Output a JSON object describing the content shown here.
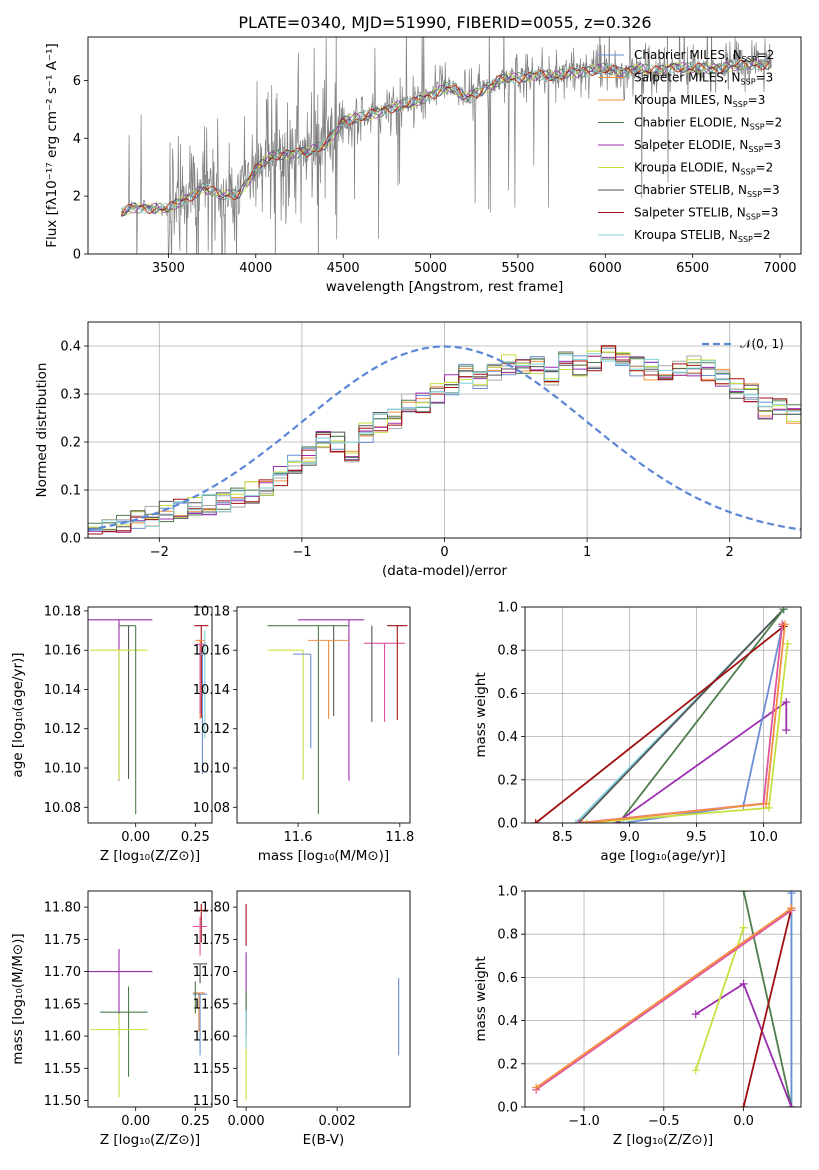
{
  "title": "PLATE=0340, MJD=51990, FIBERID=0055, z=0.326",
  "colors": {
    "model_spectra": [
      "#6a8fd5",
      "#f29040",
      "#a8a8a8",
      "#4e7d4e",
      "#9b2fae",
      "#c8e040",
      "#555555",
      "#a01010",
      "#7fd0d8"
    ],
    "data_spectrum": "#808080",
    "normal_curve": "#5c86d6"
  },
  "chart_data": [
    {
      "id": "spectrum",
      "type": "line",
      "xlabel": "wavelength [Angstrom, rest frame]",
      "ylabel": "Flux [fλ10⁻¹⁷ erg cm⁻² s⁻¹ A⁻¹]",
      "xlim": [
        3040,
        7120
      ],
      "ylim": [
        0,
        7.5
      ],
      "xticks": [
        3500,
        4000,
        4500,
        5000,
        5500,
        6000,
        6500,
        7000
      ],
      "yticks": [
        0,
        2,
        4,
        6
      ],
      "legend_position": "top-right",
      "legend": [
        {
          "label": "Chabrier MILES, N",
          "sub": "SSP",
          "tail": "=2",
          "color": "#6a8fd5"
        },
        {
          "label": "Salpeter MILES, N",
          "sub": "SSP",
          "tail": "=3",
          "color": "#f29040"
        },
        {
          "label": "Kroupa MILES, N",
          "sub": "SSP",
          "tail": "=3",
          "color": "#f29040"
        },
        {
          "label": "Chabrier ELODIE, N",
          "sub": "SSP",
          "tail": "=2",
          "color": "#4e7d4e"
        },
        {
          "label": "Salpeter ELODIE, N",
          "sub": "SSP",
          "tail": "=3",
          "color": "#9b2fae"
        },
        {
          "label": "Kroupa ELODIE, N",
          "sub": "SSP",
          "tail": "=2",
          "color": "#c8e040"
        },
        {
          "label": "Chabrier STELIB, N",
          "sub": "SSP",
          "tail": "=3",
          "color": "#555555"
        },
        {
          "label": "Salpeter STELIB, N",
          "sub": "SSP",
          "tail": "=3",
          "color": "#a01010"
        },
        {
          "label": "Kroupa STELIB, N",
          "sub": "SSP",
          "tail": "=2",
          "color": "#7fd0d8"
        }
      ],
      "continuum": [
        [
          3230,
          1.4
        ],
        [
          3300,
          1.6
        ],
        [
          3400,
          1.6
        ],
        [
          3500,
          1.55
        ],
        [
          3600,
          1.9
        ],
        [
          3700,
          2.3
        ],
        [
          3800,
          2.0
        ],
        [
          3900,
          2.1
        ],
        [
          4000,
          2.9
        ],
        [
          4100,
          3.4
        ],
        [
          4200,
          3.5
        ],
        [
          4300,
          3.5
        ],
        [
          4400,
          3.8
        ],
        [
          4500,
          4.6
        ],
        [
          4600,
          4.7
        ],
        [
          4700,
          4.9
        ],
        [
          4800,
          5.1
        ],
        [
          4900,
          5.2
        ],
        [
          5000,
          5.5
        ],
        [
          5100,
          5.8
        ],
        [
          5200,
          5.4
        ],
        [
          5300,
          5.7
        ],
        [
          5400,
          6.0
        ],
        [
          5500,
          6.1
        ],
        [
          5600,
          6.2
        ],
        [
          5700,
          6.1
        ],
        [
          5800,
          6.3
        ],
        [
          5900,
          6.3
        ],
        [
          6000,
          6.4
        ],
        [
          6100,
          6.3
        ],
        [
          6200,
          6.4
        ],
        [
          6300,
          6.3
        ],
        [
          6400,
          6.5
        ],
        [
          6500,
          6.4
        ],
        [
          6600,
          6.4
        ],
        [
          6700,
          6.5
        ],
        [
          6800,
          6.5
        ],
        [
          6950,
          6.6
        ]
      ]
    },
    {
      "id": "residuals",
      "type": "line",
      "xlabel": "(data-model)/error",
      "ylabel": "Normed distribution",
      "xlim": [
        -2.5,
        2.5
      ],
      "ylim": [
        0,
        0.45
      ],
      "xticks": [
        -2,
        -1,
        0,
        1,
        2
      ],
      "yticks": [
        0.0,
        0.1,
        0.2,
        0.3,
        0.4
      ],
      "grid": true,
      "legend_position": "top-right",
      "legend": [
        "𝒩(0, 1)"
      ],
      "bin_width": 0.1,
      "bins_start": -2.5,
      "hist_mean": [
        0.02,
        0.025,
        0.03,
        0.035,
        0.045,
        0.055,
        0.06,
        0.065,
        0.07,
        0.075,
        0.085,
        0.095,
        0.11,
        0.13,
        0.15,
        0.17,
        0.2,
        0.2,
        0.18,
        0.22,
        0.24,
        0.25,
        0.28,
        0.28,
        0.3,
        0.32,
        0.34,
        0.33,
        0.34,
        0.36,
        0.35,
        0.36,
        0.34,
        0.37,
        0.36,
        0.37,
        0.38,
        0.37,
        0.36,
        0.35,
        0.35,
        0.36,
        0.36,
        0.35,
        0.33,
        0.31,
        0.3,
        0.27,
        0.28,
        0.26,
        0.27,
        0.26,
        0.24,
        0.22,
        0.22,
        0.2,
        0.19,
        0.18,
        0.16,
        0.14,
        0.13,
        0.11,
        0.1,
        0.09,
        0.085,
        0.075,
        0.07,
        0.06,
        0.05,
        0.045
      ]
    },
    {
      "id": "age-vs-Z",
      "type": "scatter",
      "xlabel": "Z [log₁₀(Z/Z⊙)]",
      "ylabel": "age  [log₁₀(age/yr)]",
      "xlim": [
        -0.2,
        0.32
      ],
      "ylim": [
        10.072,
        10.182
      ],
      "xticks": [
        0.0,
        0.25
      ],
      "xticklabels": [
        "0.00",
        "0.25"
      ],
      "yticks": [
        10.08,
        10.1,
        10.12,
        10.14,
        10.16,
        10.18
      ],
      "points": [
        {
          "x": -0.07,
          "y": 10.1755,
          "xerr": [
            0.14,
            0.14
          ],
          "yerr": [
            0.082,
            0.0
          ],
          "color": "#9b2fae"
        },
        {
          "x": -0.03,
          "y": 10.1725,
          "xerr": [
            0.0,
            0.0
          ],
          "yerr": [
            0.078,
            0.0
          ],
          "color": "#555555"
        },
        {
          "x": -0.07,
          "y": 10.16,
          "xerr": [
            0.12,
            0.12
          ],
          "yerr": [
            0.066,
            0.0
          ],
          "color": "#c8e040"
        },
        {
          "x": 0.0,
          "y": 10.1725,
          "xerr": [
            0.07,
            0.0
          ],
          "yerr": [
            0.096,
            0.0
          ],
          "color": "#4e7d4e"
        },
        {
          "x": 0.275,
          "y": 10.1725,
          "xerr": [
            0.03,
            0.03
          ],
          "yerr": [
            0.047,
            0.0
          ],
          "color": "#a01010"
        },
        {
          "x": 0.27,
          "y": 10.165,
          "xerr": [
            0.02,
            0.02
          ],
          "yerr": [
            0.04,
            0.0
          ],
          "color": "#f29040"
        },
        {
          "x": 0.27,
          "y": 10.163,
          "xerr": [
            0.02,
            0.02
          ],
          "yerr": [
            0.035,
            0.0
          ],
          "color": "#e0559e"
        },
        {
          "x": 0.28,
          "y": 10.158,
          "xerr": [
            0.03,
            0.0
          ],
          "yerr": [
            0.061,
            0.0
          ],
          "color": "#6a8fd5"
        },
        {
          "x": 0.29,
          "y": 10.17,
          "xerr": [
            0.0,
            0.0
          ],
          "yerr": [
            0.055,
            0.0
          ],
          "color": "#7fd0d8"
        }
      ]
    },
    {
      "id": "age-vs-mass",
      "type": "scatter",
      "xlabel": "mass [log₁₀(M/M⊙)]",
      "ylabel": "",
      "xlim": [
        11.48,
        11.82
      ],
      "ylim": [
        10.072,
        10.182
      ],
      "xticks": [
        11.6,
        11.8
      ],
      "xticklabels": [
        "11.6",
        "11.8"
      ],
      "yticks": [
        10.08,
        10.1,
        10.12,
        10.14,
        10.16,
        10.18
      ],
      "points": [
        {
          "x": 11.7,
          "y": 10.1755,
          "xerr": [
            0.1,
            0.03
          ],
          "yerr": [
            0.082,
            0.0
          ],
          "color": "#9b2fae"
        },
        {
          "x": 11.64,
          "y": 10.1725,
          "xerr": [
            0.1,
            0.06
          ],
          "yerr": [
            0.096,
            0.0
          ],
          "color": "#4e7d4e"
        },
        {
          "x": 11.67,
          "y": 10.1725,
          "xerr": [
            0.0,
            0.0
          ],
          "yerr": [
            0.046,
            0.0
          ],
          "color": "#555555"
        },
        {
          "x": 11.61,
          "y": 10.16,
          "xerr": [
            0.07,
            0.0
          ],
          "yerr": [
            0.066,
            0.0
          ],
          "color": "#c8e040"
        },
        {
          "x": 11.66,
          "y": 10.165,
          "xerr": [
            0.04,
            0.04
          ],
          "yerr": [
            0.04,
            0.0
          ],
          "color": "#f29040"
        },
        {
          "x": 11.625,
          "y": 10.158,
          "xerr": [
            0.035,
            0.0
          ],
          "yerr": [
            0.048,
            0.0
          ],
          "color": "#6a8fd5"
        },
        {
          "x": 11.77,
          "y": 10.1635,
          "xerr": [
            0.04,
            0.04
          ],
          "yerr": [
            0.04,
            0.0
          ],
          "color": "#e0559e"
        },
        {
          "x": 11.795,
          "y": 10.1725,
          "xerr": [
            0.02,
            0.02
          ],
          "yerr": [
            0.048,
            0.0
          ],
          "color": "#a01010"
        },
        {
          "x": 11.745,
          "y": 10.1725,
          "xerr": [
            0.0,
            0.0
          ],
          "yerr": [
            0.049,
            0.0
          ],
          "color": "#555555"
        }
      ]
    },
    {
      "id": "massweight-vs-age",
      "type": "line",
      "xlabel": "age  [log₁₀(age/yr)]",
      "ylabel": "mass weight",
      "xlim": [
        8.22,
        10.28
      ],
      "ylim": [
        0,
        1.0
      ],
      "xticks": [
        8.5,
        9.0,
        9.5,
        10.0
      ],
      "xticklabels": [
        "8.5",
        "9.0",
        "9.5",
        "10.0"
      ],
      "yticks": [
        0.0,
        0.2,
        0.4,
        0.6,
        0.8,
        1.0
      ],
      "grid": true,
      "series": [
        {
          "color": "#7fd0d8",
          "x": [
            8.6,
            10.15
          ],
          "y": [
            0.0,
            0.99
          ]
        },
        {
          "color": "#555555",
          "x": [
            8.62,
            10.15
          ],
          "y": [
            0.0,
            0.99
          ]
        },
        {
          "color": "#4e7d4e",
          "x": [
            8.92,
            10.15
          ],
          "y": [
            0.0,
            0.99
          ]
        },
        {
          "color": "#9b2fae",
          "x": [
            8.9,
            10.17,
            10.17
          ],
          "y": [
            0.0,
            0.56,
            0.43
          ]
        },
        {
          "color": "#6a8fd5",
          "x": [
            8.95,
            9.85,
            10.14
          ],
          "y": [
            0.0,
            0.08,
            0.91
          ]
        },
        {
          "color": "#a01010",
          "x": [
            8.3,
            10.15
          ],
          "y": [
            0.0,
            0.91
          ]
        },
        {
          "color": "#c8e040",
          "x": [
            8.68,
            10.04,
            10.18
          ],
          "y": [
            0.0,
            0.07,
            0.83
          ]
        },
        {
          "color": "#e0559e",
          "x": [
            8.62,
            10.0,
            10.14
          ],
          "y": [
            0.0,
            0.09,
            0.92
          ]
        },
        {
          "color": "#f29040",
          "x": [
            8.65,
            10.02,
            10.16
          ],
          "y": [
            0.0,
            0.09,
            0.92
          ]
        }
      ]
    },
    {
      "id": "mass-vs-Z",
      "type": "scatter",
      "xlabel": "Z [log₁₀(Z/Z⊙)]",
      "ylabel": "mass [log₁₀(M/M⊙)]",
      "xlim": [
        -0.2,
        0.32
      ],
      "ylim": [
        11.49,
        11.825
      ],
      "xticks": [
        0.0,
        0.25
      ],
      "xticklabels": [
        "0.00",
        "0.25"
      ],
      "yticks": [
        11.5,
        11.55,
        11.6,
        11.65,
        11.7,
        11.75,
        11.8
      ],
      "points": [
        {
          "x": -0.07,
          "y": 11.7,
          "xerr": [
            0.14,
            0.14
          ],
          "yerr": [
            0.1,
            0.035
          ],
          "color": "#9b2fae"
        },
        {
          "x": -0.03,
          "y": 11.637,
          "xerr": [
            0.12,
            0.08
          ],
          "yerr": [
            0.1,
            0.04
          ],
          "color": "#4e7d4e"
        },
        {
          "x": -0.07,
          "y": 11.61,
          "xerr": [
            0.12,
            0.12
          ],
          "yerr": [
            0.105,
            0.025
          ],
          "color": "#c8e040"
        },
        {
          "x": 0.275,
          "y": 11.795,
          "xerr": [
            0.03,
            0.03
          ],
          "yerr": [
            0.05,
            0.01
          ],
          "color": "#a01010"
        },
        {
          "x": 0.27,
          "y": 11.77,
          "xerr": [
            0.03,
            0.03
          ],
          "yerr": [
            0.045,
            0.015
          ],
          "color": "#e0559e"
        },
        {
          "x": 0.27,
          "y": 11.712,
          "xerr": [
            0.03,
            0.03
          ],
          "yerr": [
            0.03,
            0.0
          ],
          "color": "#555555"
        },
        {
          "x": 0.265,
          "y": 11.667,
          "xerr": [
            0.025,
            0.025
          ],
          "yerr": [
            0.06,
            0.0
          ],
          "color": "#f29040"
        },
        {
          "x": 0.27,
          "y": 11.665,
          "xerr": [
            0.03,
            0.03
          ],
          "yerr": [
            0.095,
            0.0
          ],
          "color": "#6a8fd5"
        },
        {
          "x": 0.25,
          "y": 11.665,
          "xerr": [
            0.0,
            0.0
          ],
          "yerr": [
            0.03,
            0.02
          ],
          "color": "#4e7d4e"
        }
      ]
    },
    {
      "id": "mass-vs-EBV",
      "type": "scatter",
      "xlabel": "E(B-V)",
      "ylabel": "",
      "xlim": [
        -0.0002,
        0.0036
      ],
      "ylim": [
        11.49,
        11.825
      ],
      "xticks": [
        0.0,
        0.002
      ],
      "xticklabels": [
        "0.000",
        "0.002"
      ],
      "yticks": [
        11.5,
        11.55,
        11.6,
        11.65,
        11.7,
        11.75,
        11.8
      ],
      "points": [
        {
          "x": 0.0,
          "y": 11.79,
          "xerr": [
            0,
            0
          ],
          "yerr": [
            0.05,
            0.015
          ],
          "color": "#a01010"
        },
        {
          "x": 0.0,
          "y": 11.7,
          "xerr": [
            0,
            0
          ],
          "yerr": [
            0.1,
            0.03
          ],
          "color": "#9b2fae"
        },
        {
          "x": 0.0,
          "y": 11.65,
          "xerr": [
            0,
            0
          ],
          "yerr": [
            0.03,
            0.02
          ],
          "color": "#4e7d4e"
        },
        {
          "x": 0.0,
          "y": 11.6,
          "xerr": [
            0,
            0
          ],
          "yerr": [
            0.1,
            0.0
          ],
          "color": "#c8e040"
        },
        {
          "x": 0.0,
          "y": 11.64,
          "xerr": [
            0,
            0
          ],
          "yerr": [
            0.06,
            0.0
          ],
          "color": "#7fd0d8"
        },
        {
          "x": 0.00335,
          "y": 11.63,
          "xerr": [
            0,
            0
          ],
          "yerr": [
            0.06,
            0.06
          ],
          "color": "#6a8fd5"
        }
      ]
    },
    {
      "id": "massweight-vs-Z",
      "type": "line",
      "xlabel": "Z [log₁₀(Z/Z⊙)]",
      "ylabel": "mass weight",
      "xlim": [
        -1.37,
        0.36
      ],
      "ylim": [
        0,
        1.0
      ],
      "xticks": [
        -1.0,
        -0.5,
        0.0
      ],
      "xticklabels": [
        "−1.0",
        "−0.5",
        "0.0"
      ],
      "yticks": [
        0.0,
        0.2,
        0.4,
        0.6,
        0.8,
        1.0
      ],
      "grid": true,
      "series": [
        {
          "color": "#7fd0d8",
          "x": [
            0.3,
            0.3
          ],
          "y": [
            0.0,
            1.0
          ]
        },
        {
          "color": "#6a8fd5",
          "x": [
            0.3,
            0.3
          ],
          "y": [
            0.0,
            0.99
          ]
        },
        {
          "color": "#4e7d4e",
          "x": [
            0.0,
            0.3
          ],
          "y": [
            1.0,
            0.0
          ]
        },
        {
          "color": "#9b2fae",
          "x": [
            -0.3,
            0.0,
            0.3
          ],
          "y": [
            0.43,
            0.57,
            0.0
          ]
        },
        {
          "color": "#c8e040",
          "x": [
            -0.3,
            0.0
          ],
          "y": [
            0.17,
            0.83
          ]
        },
        {
          "color": "#a01010",
          "x": [
            0.0,
            0.3
          ],
          "y": [
            0.0,
            0.92
          ]
        },
        {
          "color": "#e0559e",
          "x": [
            -1.3,
            0.3
          ],
          "y": [
            0.08,
            0.91
          ]
        },
        {
          "color": "#f29040",
          "x": [
            -1.3,
            0.3
          ],
          "y": [
            0.09,
            0.92
          ]
        }
      ]
    }
  ]
}
